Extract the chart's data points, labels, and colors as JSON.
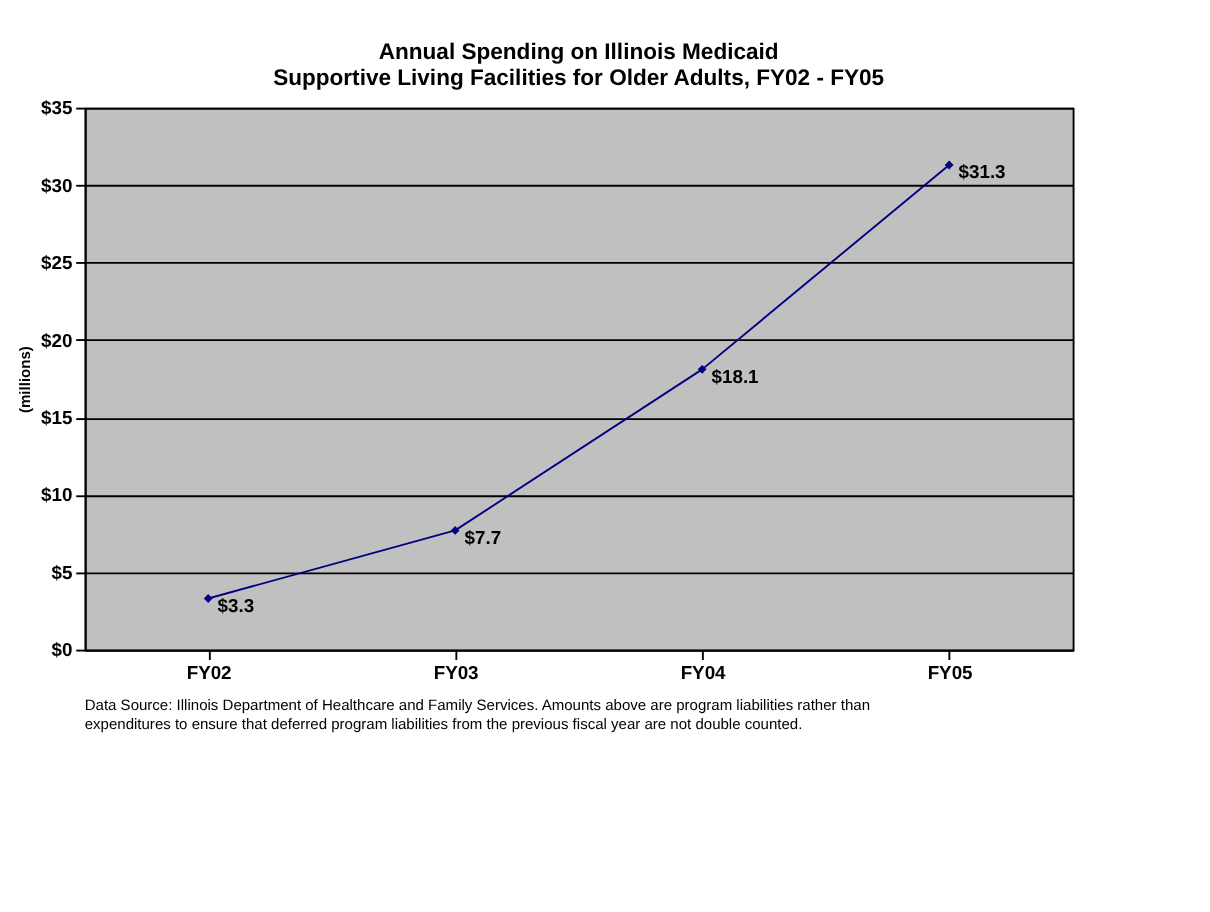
{
  "chart_data": {
    "type": "line",
    "title": "Annual Spending on Illinois Medicaid\nSupportive Living Facilities for Older Adults, FY02 - FY05",
    "ylabel": "(millions)",
    "categories": [
      "FY02",
      "FY03",
      "FY04",
      "FY05"
    ],
    "series": [
      {
        "color": "#000080",
        "values": [
          3.3,
          7.7,
          18.1,
          31.3
        ],
        "value_labels": [
          "$3.3",
          "$7.7",
          "$18.1",
          "$31.3"
        ]
      }
    ],
    "ylim": [
      0,
      35
    ],
    "yticks": [
      {
        "value": 0,
        "label": "$0"
      },
      {
        "value": 5,
        "label": "$5"
      },
      {
        "value": 10,
        "label": "$10"
      },
      {
        "value": 15,
        "label": "$15"
      },
      {
        "value": 20,
        "label": "$20"
      },
      {
        "value": 25,
        "label": "$25"
      },
      {
        "value": 30,
        "label": "$30"
      },
      {
        "value": 35,
        "label": "$35"
      }
    ],
    "grid": "y",
    "marker": "diamond",
    "line_style": "solid",
    "annotations": [
      "Data Source: Illinois Department of Healthcare and Family Services.  Amounts above are program liabilities rather than expenditures to ensure that deferred program liabilities from the previous fiscal year are not double counted."
    ]
  }
}
